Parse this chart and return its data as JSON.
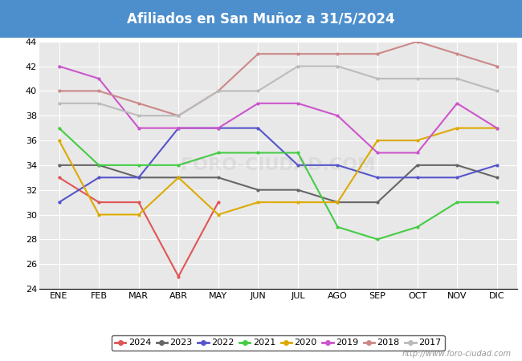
{
  "title": "Afiliados en San Muñoz a 31/5/2024",
  "title_bg": "#4d8fcc",
  "title_color": "white",
  "ylim": [
    24,
    44
  ],
  "yticks": [
    24,
    26,
    28,
    30,
    32,
    34,
    36,
    38,
    40,
    42,
    44
  ],
  "months": [
    "ENE",
    "FEB",
    "MAR",
    "ABR",
    "MAY",
    "JUN",
    "JUL",
    "AGO",
    "SEP",
    "OCT",
    "NOV",
    "DIC"
  ],
  "watermark": "http://www.foro-ciudad.com",
  "series": [
    {
      "label": "2024",
      "color": "#e05555",
      "data": [
        33,
        31,
        31,
        25,
        31,
        null,
        null,
        null,
        null,
        null,
        null,
        null
      ]
    },
    {
      "label": "2023",
      "color": "#666666",
      "data": [
        34,
        34,
        33,
        33,
        33,
        32,
        32,
        31,
        31,
        34,
        34,
        33
      ]
    },
    {
      "label": "2022",
      "color": "#5555cc",
      "data": [
        31,
        33,
        33,
        37,
        37,
        37,
        34,
        34,
        33,
        33,
        33,
        34
      ]
    },
    {
      "label": "2021",
      "color": "#44cc44",
      "data": [
        37,
        34,
        34,
        34,
        35,
        35,
        35,
        29,
        28,
        29,
        31,
        31
      ]
    },
    {
      "label": "2020",
      "color": "#ddaa00",
      "data": [
        36,
        30,
        30,
        33,
        30,
        31,
        31,
        31,
        36,
        36,
        37,
        37
      ]
    },
    {
      "label": "2019",
      "color": "#cc55cc",
      "data": [
        42,
        41,
        37,
        37,
        37,
        39,
        39,
        38,
        35,
        35,
        39,
        37
      ]
    },
    {
      "label": "2018",
      "color": "#cc8888",
      "data": [
        40,
        40,
        39,
        38,
        40,
        43,
        43,
        43,
        43,
        44,
        43,
        42
      ]
    },
    {
      "label": "2017",
      "color": "#bbbbbb",
      "data": [
        39,
        39,
        38,
        38,
        40,
        40,
        42,
        42,
        41,
        41,
        41,
        40
      ]
    }
  ],
  "plot_bg": "#e8e8e8",
  "grid_color": "#ffffff",
  "fig_bg": "#ffffff"
}
